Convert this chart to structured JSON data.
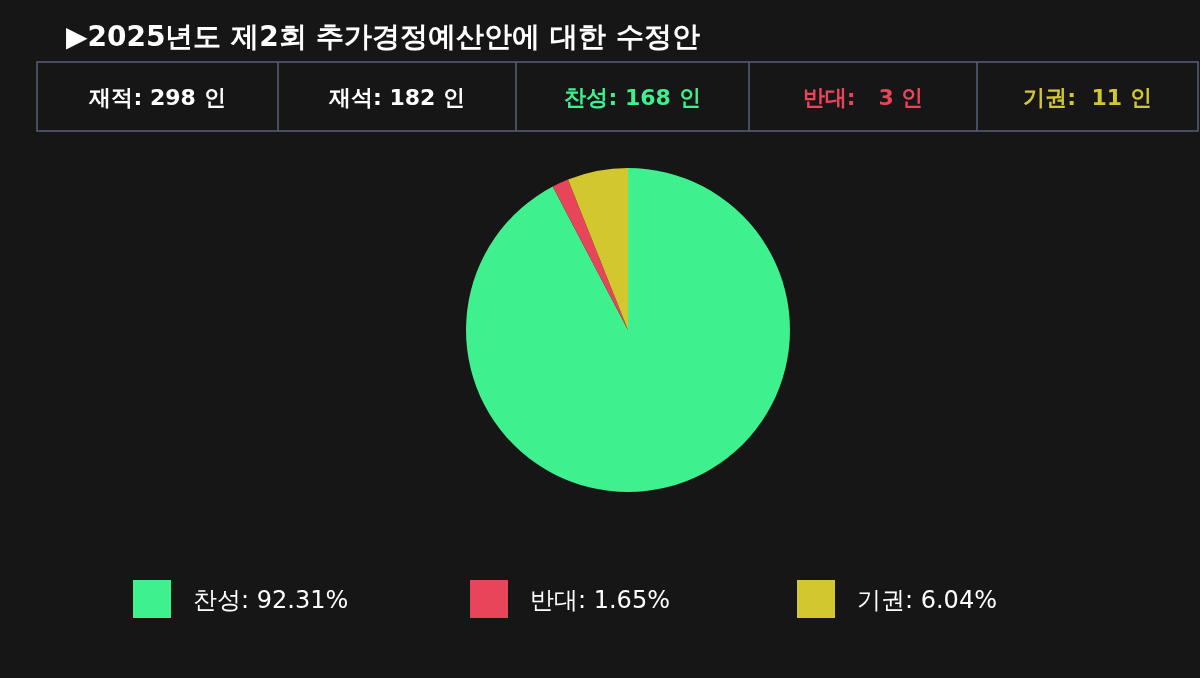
{
  "chart_data": {
    "type": "pie",
    "title": "▶2025년도 제2회 추가경정예산안에 대한 수정안",
    "categories": [
      "찬성",
      "반대",
      "기권"
    ],
    "values": [
      92.31,
      1.65,
      6.04
    ],
    "colors": [
      "#3ef08e",
      "#e8455a",
      "#d2c72e"
    ],
    "value_labels": [
      "92.31%",
      "1.65%",
      "6.04%"
    ],
    "legend": "bottom",
    "annotations": [
      "재적: 298 인",
      "재석: 182 인",
      "찬성: 168 인",
      "반대:   3 인",
      "기권:  11 인"
    ]
  }
}
